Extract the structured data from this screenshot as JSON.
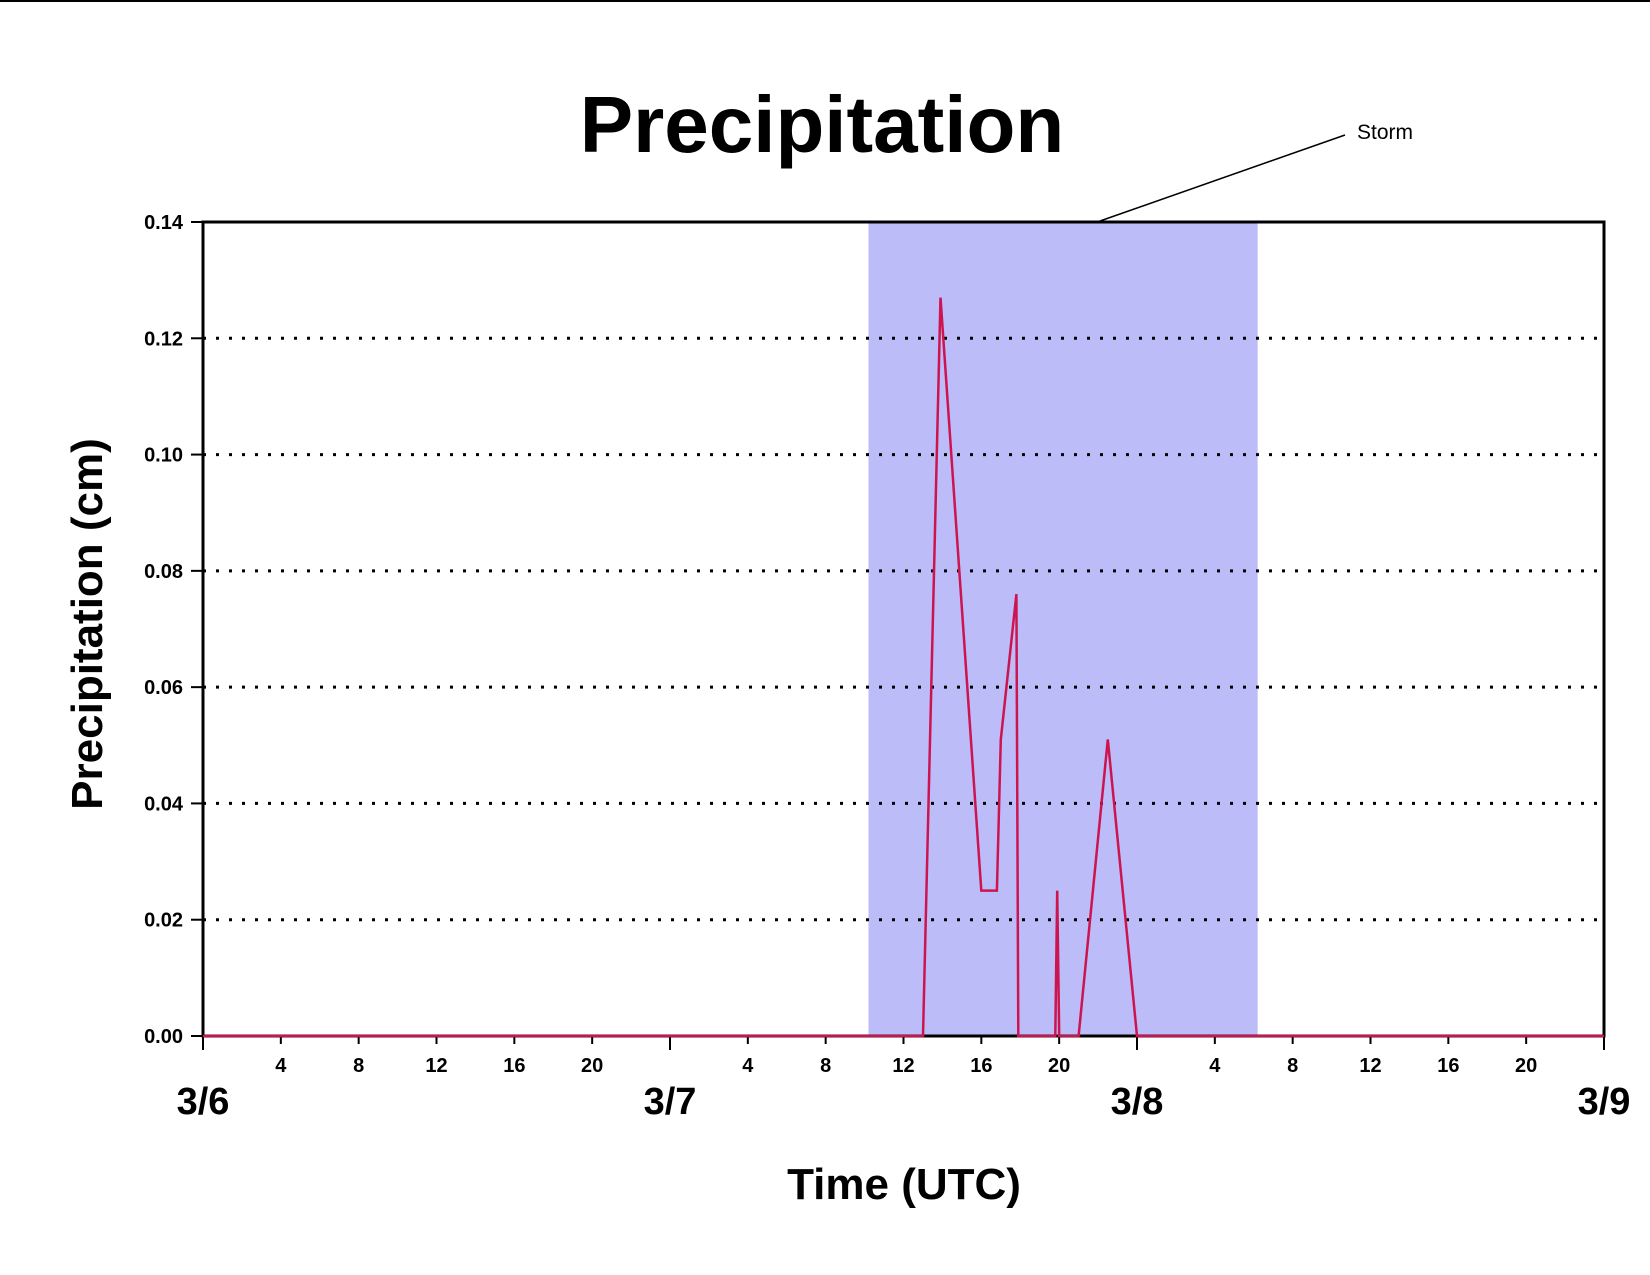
{
  "chart_data": {
    "type": "line",
    "title": "Precipitation",
    "xlabel": "Time (UTC)",
    "ylabel": "Precipitation (cm)",
    "ylim": [
      0,
      0.14
    ],
    "y_ticks": [
      "0.00",
      "0.02",
      "0.04",
      "0.06",
      "0.08",
      "0.10",
      "0.12",
      "0.14"
    ],
    "x_unit": "hours from 3/6 00 UTC",
    "xlim": [
      0,
      72
    ],
    "day_labels": [
      "3/6",
      "3/7",
      "3/8",
      "3/9"
    ],
    "hour_labels": [
      "4",
      "8",
      "12",
      "16",
      "20"
    ],
    "grid": "horizontal dotted",
    "annotation": {
      "text": "Storm",
      "x_start": 34.2,
      "x_end": 54.2,
      "color": "#bcbcf8"
    },
    "series": [
      {
        "color": "#cc1550",
        "x": [
          0,
          37.0,
          37.9,
          40.0,
          40.8,
          41.0,
          41.8,
          41.9,
          42.0,
          43.8,
          43.9,
          44.0,
          45.0,
          46.5,
          48.0,
          72.0
        ],
        "values": [
          0,
          0,
          0.127,
          0.025,
          0.025,
          0.051,
          0.076,
          0,
          0,
          0,
          0.025,
          0,
          0,
          0.051,
          0,
          0
        ]
      }
    ]
  }
}
